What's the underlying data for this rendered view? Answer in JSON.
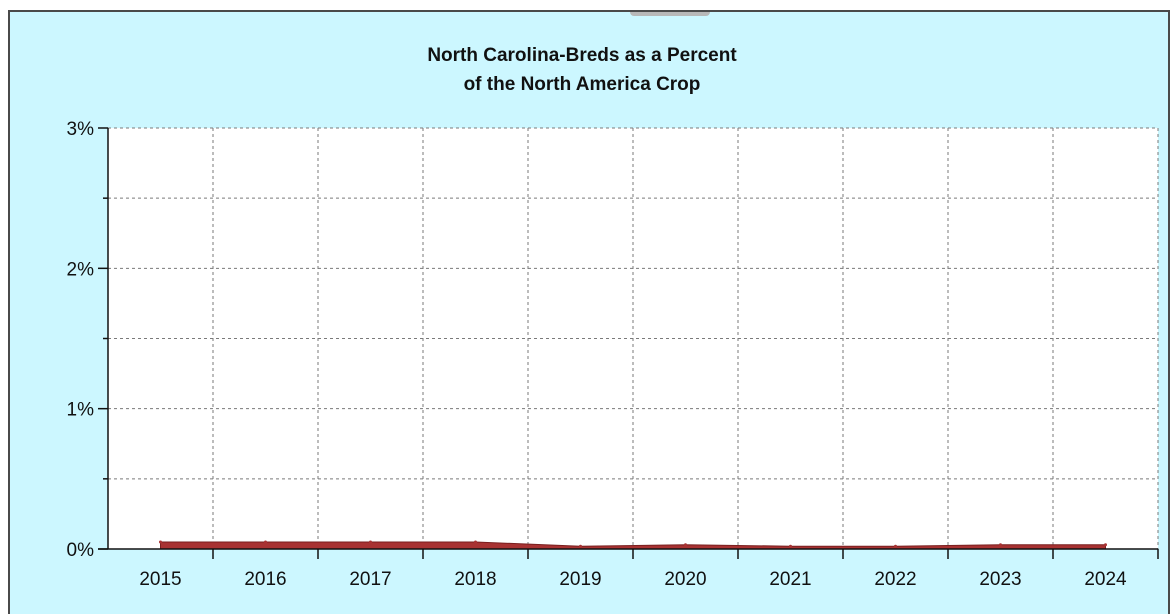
{
  "chart_data": {
    "type": "area",
    "title_lines": [
      "North Carolina-Breds as a Percent",
      "of the North America Crop"
    ],
    "xlabel": "",
    "ylabel": "",
    "categories": [
      "2015",
      "2016",
      "2017",
      "2018",
      "2019",
      "2020",
      "2021",
      "2022",
      "2023",
      "2024"
    ],
    "series": [
      {
        "color": "#a83232",
        "values": [
          0.05,
          0.05,
          0.05,
          0.05,
          0.02,
          0.03,
          0.02,
          0.02,
          0.03,
          0.03
        ]
      }
    ],
    "ylim": [
      0,
      3
    ],
    "yticks": [
      0,
      1,
      2,
      3
    ],
    "ytick_labels": [
      "0%",
      "1%",
      "2%",
      "3%"
    ],
    "grid": true,
    "background": "#ccf7ff",
    "plot_background": "#ffffff"
  }
}
